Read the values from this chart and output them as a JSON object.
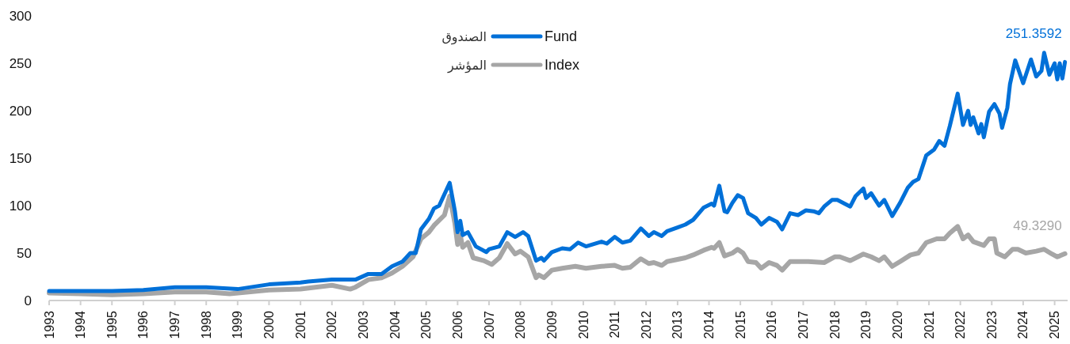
{
  "chart_data": {
    "type": "line",
    "xlim": [
      "1993-01",
      "2025-06"
    ],
    "xticks": [
      {
        "value": "1993",
        "label": "1993"
      },
      {
        "value": "1994",
        "label": "1994"
      },
      {
        "value": "1995",
        "label": "1995"
      },
      {
        "value": "1996",
        "label": "1996"
      },
      {
        "value": "1997",
        "label": "1997"
      },
      {
        "value": "1998",
        "label": "1998"
      },
      {
        "value": "1999",
        "label": "1999"
      },
      {
        "value": "2000",
        "label": "2000"
      },
      {
        "value": "2001",
        "label": "2001"
      },
      {
        "value": "2002",
        "label": "2002"
      },
      {
        "value": "2003",
        "label": "2003"
      },
      {
        "value": "2004",
        "label": "2004"
      },
      {
        "value": "2005",
        "label": "2005"
      },
      {
        "value": "2006",
        "label": "2006"
      },
      {
        "value": "2007",
        "label": "2007"
      },
      {
        "value": "2008",
        "label": "2008"
      },
      {
        "value": "2009",
        "label": "2009"
      },
      {
        "value": "2010",
        "label": "2010"
      },
      {
        "value": "2011",
        "label": "2011"
      },
      {
        "value": "2012",
        "label": "2012"
      },
      {
        "value": "2013",
        "label": "2013"
      },
      {
        "value": "2014",
        "label": "2014"
      },
      {
        "value": "2015",
        "label": "2015"
      },
      {
        "value": "2016",
        "label": "2016"
      },
      {
        "value": "2017",
        "label": "2017"
      },
      {
        "value": "2018",
        "label": "2018"
      },
      {
        "value": "2019",
        "label": "2019"
      },
      {
        "value": "2020",
        "label": "2020"
      },
      {
        "value": "2021",
        "label": "2021"
      },
      {
        "value": "2022",
        "label": "2022"
      },
      {
        "value": "2023",
        "label": "2023"
      },
      {
        "value": "2024",
        "label": "2024"
      },
      {
        "value": "2025",
        "label": "2025"
      }
    ],
    "ylim": [
      0,
      300
    ],
    "yticks": [
      0,
      50,
      100,
      150,
      200,
      250,
      300
    ],
    "grid": false,
    "legend": "top",
    "line_style": "solid",
    "marker": "none",
    "annotations": [
      "الصندوق",
      "المؤشر"
    ],
    "series": [
      {
        "name": "Fund",
        "color": "#0070d8",
        "x": [
          "1993-01",
          "1994-01",
          "1995-01",
          "1996-01",
          "1997-01",
          "1998-01",
          "1999-01",
          "2000-01",
          "2001-01",
          "2001-04",
          "2002-01",
          "2002-10",
          "2003-03",
          "2003-08",
          "2003-12",
          "2004-04",
          "2004-07",
          "2004-09",
          "2004-11",
          "2005-02",
          "2005-04",
          "2005-06",
          "2005-10",
          "2005-12",
          "2006-01",
          "2006-02",
          "2006-03",
          "2006-05",
          "2006-08",
          "2006-12",
          "2007-01",
          "2007-05",
          "2007-08",
          "2007-11",
          "2008-02",
          "2008-04",
          "2008-07",
          "2008-09",
          "2008-10",
          "2009-01",
          "2009-05",
          "2009-08",
          "2009-11",
          "2010-02",
          "2010-08",
          "2010-10",
          "2011-01",
          "2011-04",
          "2011-07",
          "2011-11",
          "2012-02",
          "2012-04",
          "2012-07",
          "2012-09",
          "2013-01",
          "2013-04",
          "2013-07",
          "2013-11",
          "2014-02",
          "2014-03",
          "2014-05",
          "2014-07",
          "2014-08",
          "2014-10",
          "2014-12",
          "2015-02",
          "2015-04",
          "2015-07",
          "2015-09",
          "2015-12",
          "2016-03",
          "2016-05",
          "2016-08",
          "2016-11",
          "2017-02",
          "2017-05",
          "2017-07",
          "2017-09",
          "2017-12",
          "2018-02",
          "2018-07",
          "2018-09",
          "2018-12",
          "2019-01",
          "2019-03",
          "2019-06",
          "2019-08",
          "2019-11",
          "2020-02",
          "2020-05",
          "2020-07",
          "2020-09",
          "2020-12",
          "2021-03",
          "2021-05",
          "2021-07",
          "2021-09",
          "2021-12",
          "2022-02",
          "2022-04",
          "2022-05",
          "2022-06",
          "2022-08",
          "2022-09",
          "2022-10",
          "2022-12",
          "2023-02",
          "2023-04",
          "2023-05",
          "2023-07",
          "2023-08",
          "2023-10",
          "2024-01",
          "2024-04",
          "2024-06",
          "2024-08",
          "2024-09",
          "2024-11",
          "2025-01",
          "2025-02",
          "2025-03",
          "2025-04",
          "2025-05"
        ],
        "values": [
          10,
          10,
          10,
          11,
          14,
          14,
          12,
          17,
          19,
          20,
          22,
          22,
          28,
          28,
          36,
          41,
          50,
          50,
          75,
          86,
          97,
          100,
          124,
          94,
          72,
          84,
          69,
          72,
          57,
          51,
          54,
          57,
          72,
          67,
          72,
          68,
          42,
          45,
          42,
          51,
          55,
          54,
          61,
          57,
          62,
          60,
          67,
          61,
          63,
          76,
          68,
          72,
          68,
          73,
          77,
          80,
          85,
          98,
          102,
          100,
          121,
          94,
          93,
          103,
          111,
          108,
          92,
          87,
          80,
          87,
          83,
          75,
          92,
          90,
          95,
          94,
          92,
          99,
          106,
          106,
          99,
          110,
          118,
          108,
          113,
          100,
          106,
          89,
          103,
          119,
          125,
          128,
          153,
          159,
          168,
          163,
          184,
          218,
          185,
          200,
          185,
          193,
          176,
          186,
          172,
          199,
          207,
          197,
          182,
          203,
          228,
          253,
          229,
          254,
          236,
          242,
          261,
          238,
          250,
          233,
          250,
          234,
          251.3592
        ],
        "value_labels": [
          null,
          null,
          null,
          null,
          null,
          null,
          null,
          null,
          null,
          null,
          null,
          null,
          null,
          null,
          null,
          null,
          null,
          null,
          null,
          null,
          null,
          null,
          null,
          null,
          null,
          null,
          null,
          null,
          null,
          null,
          null,
          null,
          null,
          null,
          null,
          null,
          null,
          null,
          null,
          null,
          null,
          null,
          null,
          null,
          null,
          null,
          null,
          null,
          null,
          null,
          null,
          null,
          null,
          null,
          null,
          null,
          null,
          null,
          null,
          null,
          null,
          null,
          null,
          null,
          null,
          null,
          null,
          null,
          null,
          null,
          null,
          null,
          null,
          null,
          null,
          null,
          null,
          null,
          null,
          null,
          null,
          null,
          null,
          null,
          null,
          null,
          null,
          null,
          null,
          null,
          null,
          null,
          null,
          null,
          null,
          null,
          null,
          null,
          null,
          null,
          null,
          null,
          null,
          null,
          null,
          null,
          null,
          null,
          null,
          null,
          null,
          null,
          null,
          null,
          null,
          null,
          null,
          null,
          null,
          null,
          null,
          null,
          "251.3592"
        ]
      },
      {
        "name": "Index",
        "color": "#a6a6a6",
        "x": [
          "1993-01",
          "1994-01",
          "1995-01",
          "1996-01",
          "1997-01",
          "1998-01",
          "1998-10",
          "2000-01",
          "2001-01",
          "2002-01",
          "2002-08",
          "2002-10",
          "2003-03",
          "2003-08",
          "2003-12",
          "2004-04",
          "2004-08",
          "2004-11",
          "2005-02",
          "2005-04",
          "2005-08",
          "2005-10",
          "2005-12",
          "2006-01",
          "2006-02",
          "2006-03",
          "2006-05",
          "2006-07",
          "2006-11",
          "2007-02",
          "2007-05",
          "2007-08",
          "2007-11",
          "2008-01",
          "2008-04",
          "2008-07",
          "2008-08",
          "2008-10",
          "2009-01",
          "2009-05",
          "2009-10",
          "2010-02",
          "2010-08",
          "2011-01",
          "2011-04",
          "2011-07",
          "2011-11",
          "2012-02",
          "2012-04",
          "2012-07",
          "2012-09",
          "2013-04",
          "2013-07",
          "2013-11",
          "2014-02",
          "2014-03",
          "2014-05",
          "2014-07",
          "2014-10",
          "2014-12",
          "2015-02",
          "2015-04",
          "2015-07",
          "2015-09",
          "2015-12",
          "2016-03",
          "2016-05",
          "2016-08",
          "2017-03",
          "2017-09",
          "2018-01",
          "2018-03",
          "2018-07",
          "2018-12",
          "2019-03",
          "2019-06",
          "2019-08",
          "2019-11",
          "2020-02",
          "2020-06",
          "2020-09",
          "2020-12",
          "2021-04",
          "2021-07",
          "2021-09",
          "2021-12",
          "2022-02",
          "2022-04",
          "2022-06",
          "2022-10",
          "2022-12",
          "2023-02",
          "2023-03",
          "2023-06",
          "2023-09",
          "2023-11",
          "2024-02",
          "2024-06",
          "2024-09",
          "2024-12",
          "2025-02",
          "2025-03",
          "2025-05"
        ],
        "values": [
          8,
          7,
          6,
          7,
          9,
          9,
          7,
          11,
          12,
          16,
          12,
          14,
          22,
          24,
          29,
          36,
          46,
          65,
          72,
          79,
          90,
          110,
          81,
          59,
          69,
          56,
          61,
          45,
          42,
          38,
          45,
          60,
          49,
          52,
          46,
          24,
          27,
          24,
          32,
          34,
          36,
          34,
          36,
          37,
          34,
          35,
          44,
          39,
          40,
          37,
          41,
          45,
          48,
          53,
          56,
          55,
          61,
          47,
          50,
          54,
          50,
          41,
          40,
          34,
          40,
          37,
          32,
          41,
          41,
          40,
          46,
          46,
          42,
          49,
          46,
          42,
          46,
          36,
          41,
          48,
          50,
          61,
          65,
          65,
          71,
          78,
          65,
          69,
          62,
          58,
          65,
          65,
          50,
          46,
          54,
          54,
          50,
          52,
          54,
          49,
          46,
          47,
          49.329
        ],
        "value_labels": [
          null,
          null,
          null,
          null,
          null,
          null,
          null,
          null,
          null,
          null,
          null,
          null,
          null,
          null,
          null,
          null,
          null,
          null,
          null,
          null,
          null,
          null,
          null,
          null,
          null,
          null,
          null,
          null,
          null,
          null,
          null,
          null,
          null,
          null,
          null,
          null,
          null,
          null,
          null,
          null,
          null,
          null,
          null,
          null,
          null,
          null,
          null,
          null,
          null,
          null,
          null,
          null,
          null,
          null,
          null,
          null,
          null,
          null,
          null,
          null,
          null,
          null,
          null,
          null,
          null,
          null,
          null,
          null,
          null,
          null,
          null,
          null,
          null,
          null,
          null,
          null,
          null,
          null,
          null,
          null,
          null,
          null,
          null,
          null,
          null,
          null,
          null,
          null,
          null,
          null,
          null,
          null,
          null,
          null,
          null,
          null,
          null,
          null,
          null,
          null,
          null,
          null,
          "49.3290"
        ]
      }
    ]
  }
}
